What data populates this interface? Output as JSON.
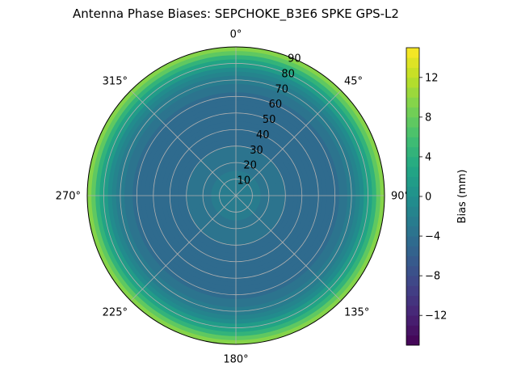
{
  "chart_data": {
    "type": "heatmap",
    "projection": "polar",
    "title": "Antenna Phase Biases: SEPCHOKE_B3E6   SPKE GPS-L2",
    "angle_ticks": [
      {
        "deg": 0,
        "label": "0°"
      },
      {
        "deg": 45,
        "label": "45°"
      },
      {
        "deg": 90,
        "label": "90°"
      },
      {
        "deg": 135,
        "label": "135°"
      },
      {
        "deg": 180,
        "label": "180°"
      },
      {
        "deg": 225,
        "label": "225°"
      },
      {
        "deg": 270,
        "label": "270°"
      },
      {
        "deg": 315,
        "label": "315°"
      }
    ],
    "radial_ticks": [
      "10",
      "20",
      "30",
      "40",
      "50",
      "60",
      "70",
      "80",
      "90"
    ],
    "radial_values": [
      10,
      20,
      30,
      40,
      50,
      60,
      70,
      80,
      90
    ],
    "rlim": [
      0,
      90
    ],
    "grid": true,
    "radial_profile": {
      "zenith_angle_deg": [
        0,
        10,
        20,
        30,
        40,
        50,
        60,
        70,
        75,
        80,
        85,
        90
      ],
      "bias_mm": [
        -2.4,
        -2.7,
        -3.2,
        -4.0,
        -4.6,
        -4.8,
        -4.3,
        -2.8,
        -1.2,
        1.8,
        6.0,
        11.0
      ]
    },
    "colorbar": {
      "label": "Bias (mm)",
      "range": [
        -15,
        15
      ],
      "ticks": [
        -12,
        -8,
        -4,
        0,
        4,
        8,
        12
      ],
      "tick_labels": [
        "−12",
        "−8",
        "−4",
        "0",
        "4",
        "8",
        "12"
      ],
      "levels": 30,
      "colormap": "viridis"
    }
  }
}
